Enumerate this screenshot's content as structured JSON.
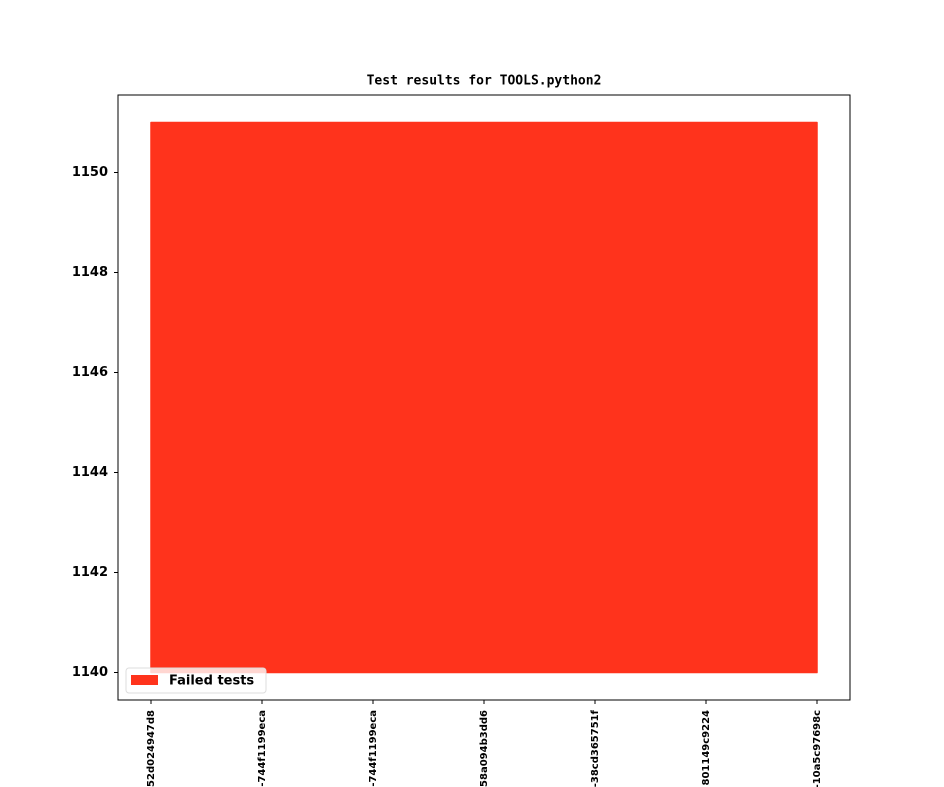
{
  "chart_data": {
    "type": "range-area",
    "title": "Test results for TOOLS.python2",
    "categories": [
      "52d024947d8",
      "-744f1199eca",
      "-744f1199eca",
      "58a094b3dd6",
      "-38cd365751f",
      "801149c9224",
      "-10a5c97698c"
    ],
    "series": [
      {
        "name": "Failed tests",
        "color": "#ff331c",
        "low": [
          1140,
          1140,
          1140,
          1140,
          1140,
          1140,
          1140
        ],
        "values": [
          1151,
          1151,
          1151,
          1151,
          1151,
          1151,
          1151
        ]
      }
    ],
    "ylim": [
      1139.45,
      1151.55
    ],
    "yticks": [
      1140,
      1142,
      1144,
      1146,
      1148,
      1150
    ],
    "legend": "lower left"
  }
}
